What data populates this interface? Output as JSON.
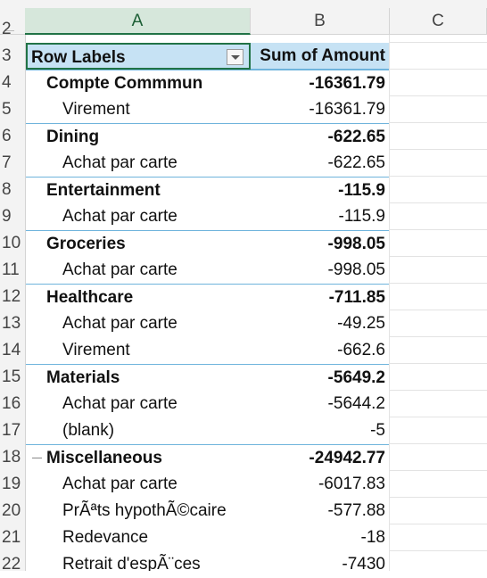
{
  "columns": [
    "A",
    "B",
    "C"
  ],
  "row_numbers": [
    "2",
    "3",
    "4",
    "5",
    "6",
    "7",
    "8",
    "9",
    "10",
    "11",
    "12",
    "13",
    "14",
    "15",
    "16",
    "17",
    "18",
    "19",
    "20",
    "21",
    "22"
  ],
  "pivot": {
    "header": {
      "label": "Row Labels",
      "value": "Sum of Amount"
    },
    "rows": [
      {
        "type": "group",
        "label": "Compte Commmun",
        "value": "-16361.79"
      },
      {
        "type": "item",
        "label": "Virement",
        "value": "-16361.79"
      },
      {
        "type": "group",
        "label": "Dining",
        "value": "-622.65"
      },
      {
        "type": "item",
        "label": "Achat par carte",
        "value": "-622.65"
      },
      {
        "type": "group",
        "label": "Entertainment",
        "value": "-115.9"
      },
      {
        "type": "item",
        "label": "Achat par carte",
        "value": "-115.9"
      },
      {
        "type": "group",
        "label": "Groceries",
        "value": "-998.05"
      },
      {
        "type": "item",
        "label": "Achat par carte",
        "value": "-998.05"
      },
      {
        "type": "group",
        "label": "Healthcare",
        "value": "-711.85"
      },
      {
        "type": "item",
        "label": "Achat par carte",
        "value": "-49.25"
      },
      {
        "type": "item",
        "label": "Virement",
        "value": "-662.6"
      },
      {
        "type": "group",
        "label": "Materials",
        "value": "-5649.2"
      },
      {
        "type": "item",
        "label": "Achat par carte",
        "value": "-5644.2"
      },
      {
        "type": "item",
        "label": "(blank)",
        "value": "-5"
      },
      {
        "type": "group",
        "label": "Miscellaneous",
        "value": "-24942.77"
      },
      {
        "type": "item",
        "label": "Achat par carte",
        "value": "-6017.83"
      },
      {
        "type": "item",
        "label": "PrÃªts hypothÃ©caire",
        "value": "-577.88"
      },
      {
        "type": "item",
        "label": "Redevance",
        "value": "-18"
      },
      {
        "type": "item",
        "label": "Retrait d'espÃ¨ces",
        "value": "-7430"
      }
    ]
  }
}
